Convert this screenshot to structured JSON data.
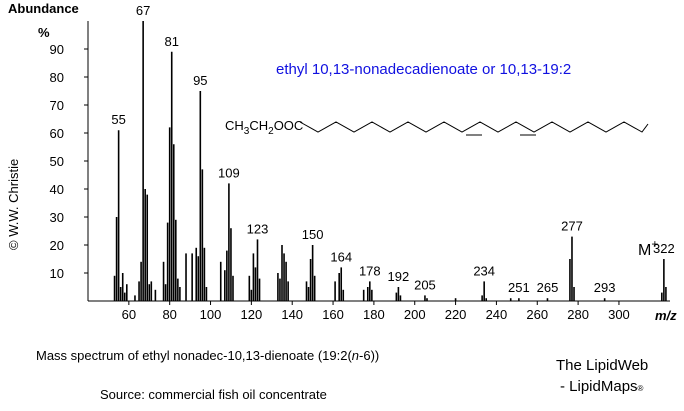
{
  "chart_data": {
    "type": "stick",
    "title": "ethyl 10,13-nonadecadienoate or 10,13-19:2",
    "y_label": "Abundance",
    "y_unit": "%",
    "x_label": "m/z",
    "formula": [
      "CH",
      "3",
      "CH",
      "2",
      "OOC"
    ],
    "molecular_ion": {
      "symbol": "M",
      "charge": "+"
    },
    "credit": "© W.W. Christie",
    "xlim": [
      40,
      325
    ],
    "xticks": [
      60,
      80,
      100,
      120,
      140,
      160,
      180,
      200,
      220,
      240,
      260,
      280,
      300
    ],
    "ylim": [
      0,
      100
    ],
    "yticks": [
      10,
      20,
      30,
      40,
      50,
      60,
      70,
      80,
      90
    ],
    "color": "#000000",
    "labeled_peaks": {
      "x": [
        55,
        67,
        81,
        95,
        109,
        123,
        150,
        164,
        178,
        192,
        205,
        234,
        251,
        265,
        277,
        293,
        322
      ],
      "values": [
        61,
        100,
        89,
        75,
        42,
        22,
        20,
        12,
        7,
        5,
        2,
        7,
        1,
        1,
        23,
        1,
        15
      ]
    },
    "other_peaks": {
      "x": [
        53,
        54,
        56,
        57,
        58,
        59,
        63,
        65,
        66,
        68,
        69,
        70,
        71,
        73,
        77,
        78,
        79,
        80,
        82,
        83,
        84,
        85,
        88,
        91,
        93,
        94,
        96,
        97,
        98,
        105,
        107,
        108,
        110,
        111,
        119,
        120,
        121,
        122,
        124,
        133,
        134,
        135,
        136,
        137,
        138,
        147,
        148,
        149,
        151,
        161,
        163,
        165,
        175,
        177,
        179,
        191,
        193,
        206,
        220,
        233,
        235,
        247,
        276,
        278,
        321,
        323
      ],
      "values": [
        9,
        30,
        5,
        10,
        3,
        6,
        2,
        7,
        14,
        40,
        38,
        6,
        7,
        4,
        14,
        6,
        28,
        62,
        56,
        29,
        8,
        5,
        17,
        17,
        19,
        16,
        47,
        19,
        5,
        14,
        11,
        18,
        26,
        9,
        9,
        4,
        17,
        12,
        8,
        10,
        8,
        20,
        17,
        14,
        7,
        7,
        5,
        15,
        9,
        7,
        10,
        4,
        4,
        5,
        4,
        3,
        2,
        1,
        1,
        2,
        1,
        1,
        15,
        5,
        3,
        5
      ]
    },
    "caption": [
      "Mass spectrum of ethyl nonadec-10,13-dienoate (19:2(",
      "n",
      "-6))"
    ],
    "source": "Source: commercial fish oil concentrate",
    "brand": [
      "The LipidWeb",
      "- LipidMaps",
      "®"
    ]
  }
}
